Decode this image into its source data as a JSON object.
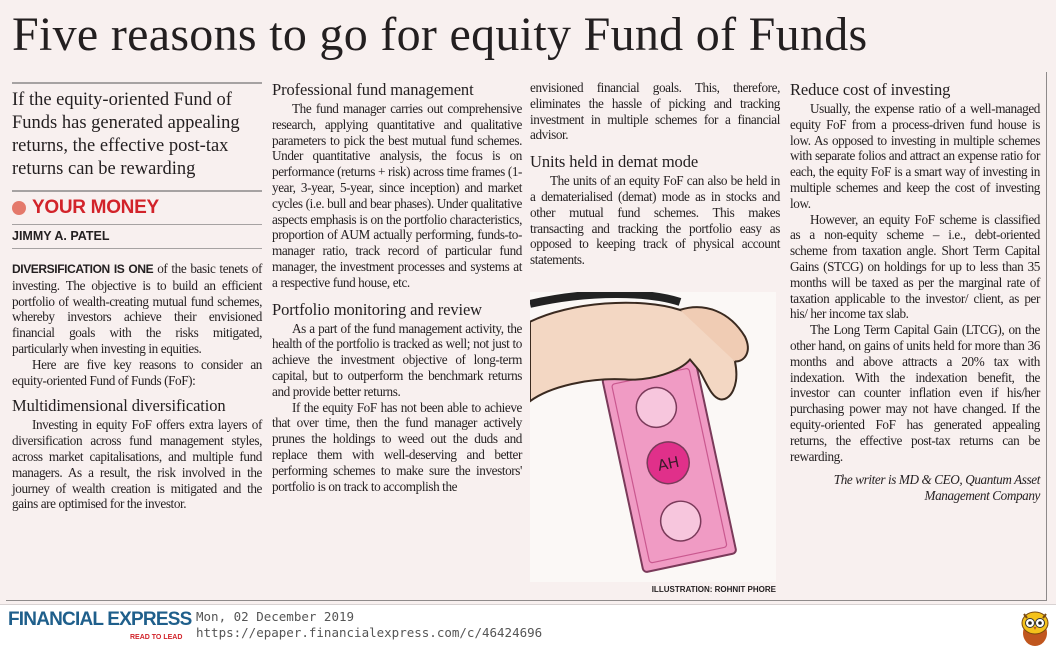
{
  "headline": "Five reasons to go for equity Fund of Funds",
  "deck": "If the equity-oriented Fund of Funds has generated appealing returns, the effective post-tax returns can be rewarding",
  "section": "YOUR MONEY",
  "byline": "JIMMY A. PATEL",
  "intro": {
    "lead_in": "DIVERSIFICATION IS ONE",
    "p1_rest": " of the basic tenets of investing. The objective is to build an efficient portfolio of wealth-creating mutual fund schemes, whereby investors achieve their envisioned financial goals with the risks mitigated, particularly when investing in equities.",
    "p2": "Here are five key reasons to consider an equity-oriented Fund of Funds (FoF):"
  },
  "sections": [
    {
      "heading": "Multidimensional diversification",
      "paragraphs": [
        "Investing in equity FoF offers extra layers of diversification across fund management styles, across market capitalisations, and multiple fund managers. As a result, the risk involved in the journey of wealth creation is mitigated and the gains are optimised for the investor."
      ]
    },
    {
      "heading": "Professional fund management",
      "paragraphs": [
        "The fund manager carries out comprehensive research, applying quantitative and qualitative parameters to pick the best mutual fund schemes. Under quantitative analysis, the focus is on performance (returns + risk) across time frames (1-year, 3-year, 5-year, since inception) and market cycles (i.e. bull and bear phases). Under qualitative aspects emphasis is on the portfolio characteristics, proportion of AUM actually performing, funds-to-manager ratio, track record of particular fund manager, the investment processes and systems at a respective fund house, etc."
      ]
    },
    {
      "heading": "Portfolio monitoring and review",
      "paragraphs": [
        "As a part of the fund management activity, the health of the portfolio is tracked as well; not just to achieve the investment objective of long-term capital, but to outperform the benchmark returns and provide better returns.",
        "If the equity FoF has not been able to achieve that over time, then the fund manager actively prunes the holdings to weed out the duds and replace them with well-deserving and better performing schemes to make sure the investors' portfolio is on track to accomplish the"
      ]
    },
    {
      "continuation": "envisioned financial goals. This, therefore, eliminates the hassle of picking and tracking investment in multiple schemes for a financial advisor."
    },
    {
      "heading": "Units held in demat mode",
      "paragraphs": [
        "The units of an equity FoF can also be held in a dematerialised (demat) mode as in stocks and other mutual fund schemes. This makes transacting and tracking the portfolio easy as opposed to keeping track of physical account statements."
      ]
    },
    {
      "heading": "Reduce cost of investing",
      "paragraphs": [
        "Usually, the expense ratio of a well-managed equity FoF from a process-driven fund house is low. As opposed to investing in multiple schemes with separate folios and attract an expense ratio for each, the equity FoF is a smart way of investing in multiple schemes and keep the cost of investing low.",
        "However, an equity FoF scheme is classified as a non-equity scheme – i.e., debt-oriented scheme from taxation angle. Short Term Capital Gains (STCG) on holdings for up to less than 35 months will be taxed as per the marginal rate of taxation applicable to the investor/ client, as per his/ her income tax slab.",
        "The Long Term Capital Gain (LTCG), on the other hand, on gains of units held for more than 36 months and above attracts a 20% tax with indexation. With the indexation benefit, the investor can counter inflation even if his/her purchasing power may not have changed. If the equity-oriented FoF has generated appealing returns, the effective post-tax returns can be rewarding."
      ]
    }
  ],
  "credit_line1": "The writer is MD & CEO, Quantum Asset",
  "credit_line2": "Management Company",
  "illustration": {
    "caption": "ILLUSTRATION: ROHNIT PHORE",
    "note_logo": "AH"
  },
  "footer": {
    "logo": "FINANCIAL EXPRESS",
    "tagline": "READ TO LEAD",
    "date": "Mon, 02 December 2019",
    "url": "https://epaper.financialexpress.com/c/46424696",
    "mascot_icon": "owl-icon"
  },
  "colors": {
    "accent": "#d2232a",
    "brand": "#1f5f8b",
    "paper": "#f8f0ef",
    "note": "#f09bc4"
  }
}
